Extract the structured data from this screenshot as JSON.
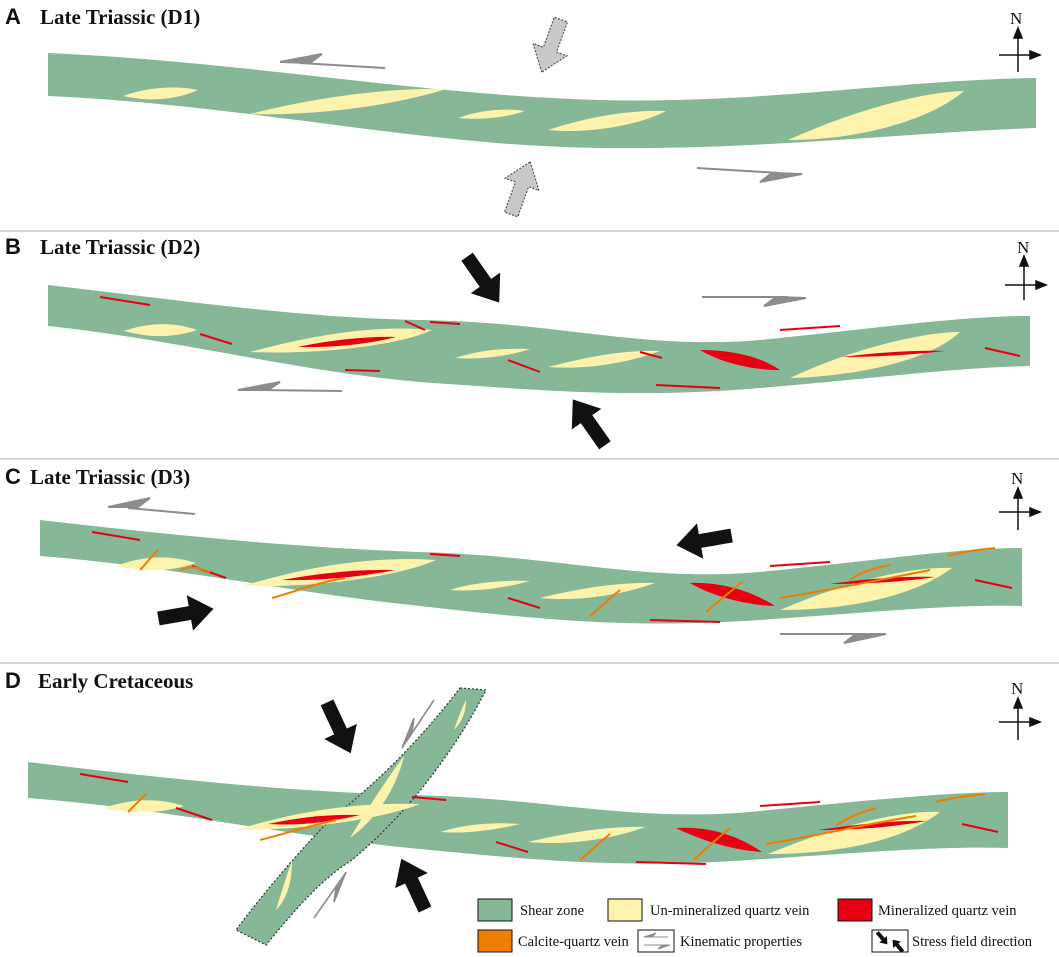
{
  "panels": [
    {
      "letter": "A",
      "title": "Late Triassic (D1)"
    },
    {
      "letter": "B",
      "title": "Late Triassic (D2)"
    },
    {
      "letter": "C",
      "title": "Late Triassic (D3)"
    },
    {
      "letter": "D",
      "title": "Early Cretaceous"
    }
  ],
  "north_label": "N",
  "legend": {
    "shear_zone": "Shear zone",
    "unmineralized": "Un-mineralized quartz vein",
    "mineralized": "Mineralized quartz  vein",
    "calcite": "Calcite-quartz vein",
    "kinematic": "Kinematic properties",
    "stress": "Stress field direction"
  },
  "colors": {
    "shear_zone": "#86b797",
    "unmineralized_vein": "#fdf3ad",
    "mineralized_vein": "#e60012",
    "calcite_vein": "#ee7d00",
    "stress_arrow": "#111111",
    "stress_arrow_d1": "#c8c8c8",
    "kinematic_arrow": "#8c8c8c",
    "divider": "#aaaaaa"
  }
}
